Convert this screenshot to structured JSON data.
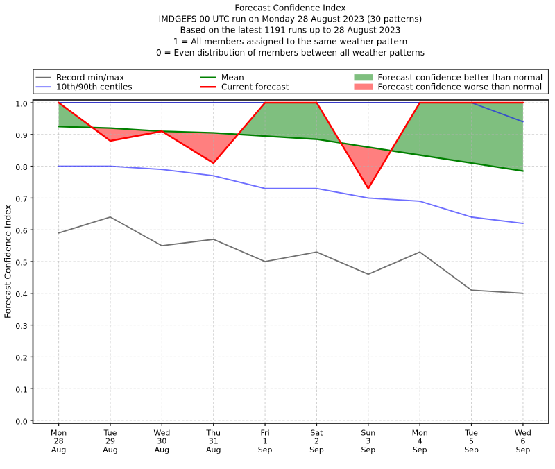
{
  "figure": {
    "titles": [
      "Forecast Confidence Index",
      "IMDGEFS 00 UTC run on Monday 28 August 2023 (30 patterns)",
      "Based on the latest 1191 runs up to 28 August 2023",
      "1 = All members assigned to the same weather pattern",
      "0 = Even distribution of members between all weather patterns"
    ]
  },
  "chart_data": {
    "type": "line",
    "title": "Forecast Confidence Index",
    "subtitle_lines": [
      "IMDGEFS 00 UTC run on Monday 28 August 2023 (30 patterns)",
      "Based on the latest 1191 runs up to 28 August 2023",
      "1 = All members assigned to the same weather pattern",
      "0 = Even distribution of members between all weather patterns"
    ],
    "xlabel": "",
    "ylabel": "Forecast Confidence Index",
    "ylim": [
      0.0,
      1.0
    ],
    "yticks": [
      0.0,
      0.1,
      0.2,
      0.3,
      0.4,
      0.5,
      0.6,
      0.7,
      0.8,
      0.9,
      1.0
    ],
    "grid": true,
    "grid_style": "dashed",
    "grid_color": "#b0b0b0",
    "categories": [
      [
        "Mon",
        "28",
        "Aug"
      ],
      [
        "Tue",
        "29",
        "Aug"
      ],
      [
        "Wed",
        "30",
        "Aug"
      ],
      [
        "Thu",
        "31",
        "Aug"
      ],
      [
        "Fri",
        "1",
        "Sep"
      ],
      [
        "Sat",
        "2",
        "Sep"
      ],
      [
        "Sun",
        "3",
        "Sep"
      ],
      [
        "Mon",
        "4",
        "Sep"
      ],
      [
        "Tue",
        "5",
        "Sep"
      ],
      [
        "Wed",
        "6",
        "Sep"
      ]
    ],
    "series": [
      {
        "name": "Record min/max",
        "role": "record_max",
        "color": "#6f6f6f",
        "opacity": 1,
        "width": 1.8,
        "values": [
          1.0,
          1.0,
          1.0,
          1.0,
          1.0,
          1.0,
          1.0,
          1.0,
          1.0,
          1.0
        ]
      },
      {
        "name": "Record min/max",
        "role": "record_min",
        "color": "#6f6f6f",
        "opacity": 1,
        "width": 1.8,
        "values": [
          0.59,
          0.64,
          0.55,
          0.57,
          0.5,
          0.53,
          0.46,
          0.53,
          0.41,
          0.4
        ]
      },
      {
        "name": "10th/90th centiles",
        "role": "centile_10",
        "color": "#0000ff",
        "opacity": 0.57,
        "width": 1.9,
        "values": [
          0.8,
          0.8,
          0.79,
          0.77,
          0.73,
          0.73,
          0.7,
          0.69,
          0.64,
          0.62
        ]
      },
      {
        "name": "10th/90th centiles",
        "role": "centile_90",
        "color": "#0000ff",
        "opacity": 0.57,
        "width": 1.9,
        "values": [
          1.0,
          1.0,
          1.0,
          1.0,
          1.0,
          1.0,
          1.0,
          1.0,
          1.0,
          0.94
        ]
      },
      {
        "name": "Mean",
        "role": "mean",
        "color": "#008000",
        "opacity": 1,
        "width": 2.3,
        "values": [
          0.925,
          0.92,
          0.91,
          0.905,
          0.895,
          0.885,
          0.86,
          0.835,
          0.81,
          0.785
        ]
      },
      {
        "name": "Current forecast",
        "role": "current",
        "color": "#ff0000",
        "opacity": 1,
        "width": 2.5,
        "values": [
          1.0,
          0.88,
          0.91,
          0.81,
          1.0,
          1.0,
          0.73,
          1.0,
          1.0,
          1.0
        ]
      }
    ],
    "fills": {
      "better": {
        "label": "Forecast confidence better than normal",
        "color": "#008000",
        "opacity": 0.5
      },
      "worse": {
        "label": "Forecast confidence worse than normal",
        "color": "#ff0000",
        "opacity": 0.5
      }
    },
    "legend": {
      "position": "top",
      "entries": [
        {
          "label": "Record min/max",
          "swatch": "line",
          "color": "#6f6f6f",
          "opacity": 1,
          "width": 1.8
        },
        {
          "label": "10th/90th centiles",
          "swatch": "line",
          "color": "#0000ff",
          "opacity": 0.57,
          "width": 1.9
        },
        {
          "label": "Mean",
          "swatch": "line",
          "color": "#008000",
          "opacity": 1,
          "width": 2.3
        },
        {
          "label": "Current forecast",
          "swatch": "line",
          "color": "#ff0000",
          "opacity": 1,
          "width": 2.5
        },
        {
          "label": "Forecast confidence better than normal",
          "swatch": "patch",
          "color": "#008000",
          "opacity": 0.5
        },
        {
          "label": "Forecast confidence worse than normal",
          "swatch": "patch",
          "color": "#ff0000",
          "opacity": 0.5
        }
      ]
    }
  }
}
